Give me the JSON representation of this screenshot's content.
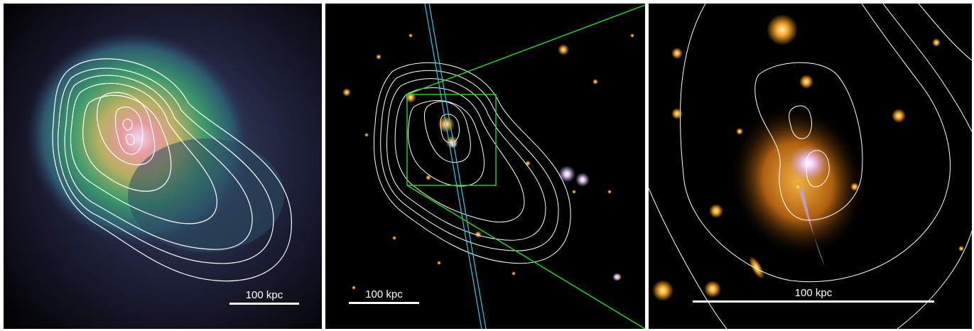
{
  "panels": [
    {
      "name": "xray-map",
      "scalebar": {
        "label": "100 kpc"
      }
    },
    {
      "name": "optical-image",
      "scalebar": {
        "label": "100 kpc"
      }
    },
    {
      "name": "zoom-image",
      "scalebar": {
        "label": "100 kpc"
      }
    }
  ],
  "colors": {
    "contour": "#ffffff",
    "slit": "#33c8e8",
    "zoom_box": "#22dd22",
    "background": "#000000"
  }
}
